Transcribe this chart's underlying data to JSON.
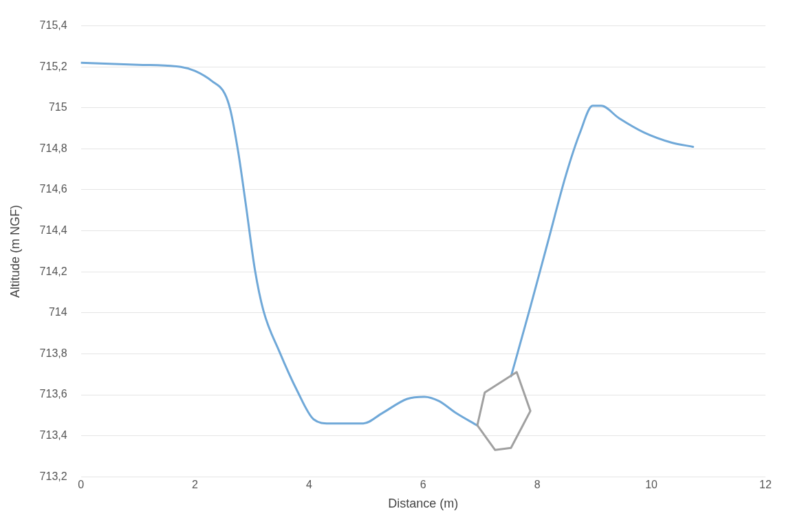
{
  "chart_data": {
    "type": "line",
    "xlabel": "Distance (m)",
    "ylabel": "Altitude (m NGF)",
    "xlim": [
      0,
      12
    ],
    "xticks": [
      0,
      2,
      4,
      6,
      8,
      10,
      12
    ],
    "ylim": [
      713.2,
      715.4
    ],
    "yticks": [
      {
        "value": 713.2,
        "label": "713,2"
      },
      {
        "value": 713.4,
        "label": "713,4"
      },
      {
        "value": 713.6,
        "label": "713,6"
      },
      {
        "value": 713.8,
        "label": "713,8"
      },
      714,
      {
        "value": 714.2,
        "label": "714,2"
      },
      {
        "value": 714.4,
        "label": "714,4"
      },
      {
        "value": 714.6,
        "label": "714,6"
      },
      {
        "value": 714.8,
        "label": "714,8"
      },
      715,
      {
        "value": 715.2,
        "label": "715,2"
      },
      {
        "value": 715.4,
        "label": "715,4"
      }
    ],
    "grid": "y",
    "legend": false,
    "marker": "none",
    "line_style": "solid",
    "series": [
      {
        "color": "#6fa8d8",
        "x": [
          0,
          1,
          1.75,
          2,
          2.3,
          2.52,
          2.62,
          2.76,
          2.89,
          3.05,
          3.2,
          3.48,
          3.79,
          4.08,
          4.35,
          4.6,
          4.95,
          5.28,
          5.72,
          6.02,
          6.27,
          6.58,
          6.95,
          7.2,
          7.54,
          7.88,
          8.19,
          8.5,
          8.75,
          8.97,
          9.12,
          9.43,
          9.87,
          10.36,
          10.73
        ],
        "values": [
          715.22,
          715.21,
          715.2,
          715.18,
          715.13,
          715.07,
          714.99,
          714.78,
          714.53,
          714.21,
          714.01,
          713.81,
          713.62,
          713.48,
          713.46,
          713.46,
          713.46,
          713.51,
          713.58,
          713.59,
          713.57,
          713.51,
          713.45,
          null,
          713.69,
          714.03,
          714.35,
          714.67,
          714.88,
          715.01,
          715.01,
          714.95,
          714.88,
          714.83,
          714.81
        ]
      }
    ]
  }
}
